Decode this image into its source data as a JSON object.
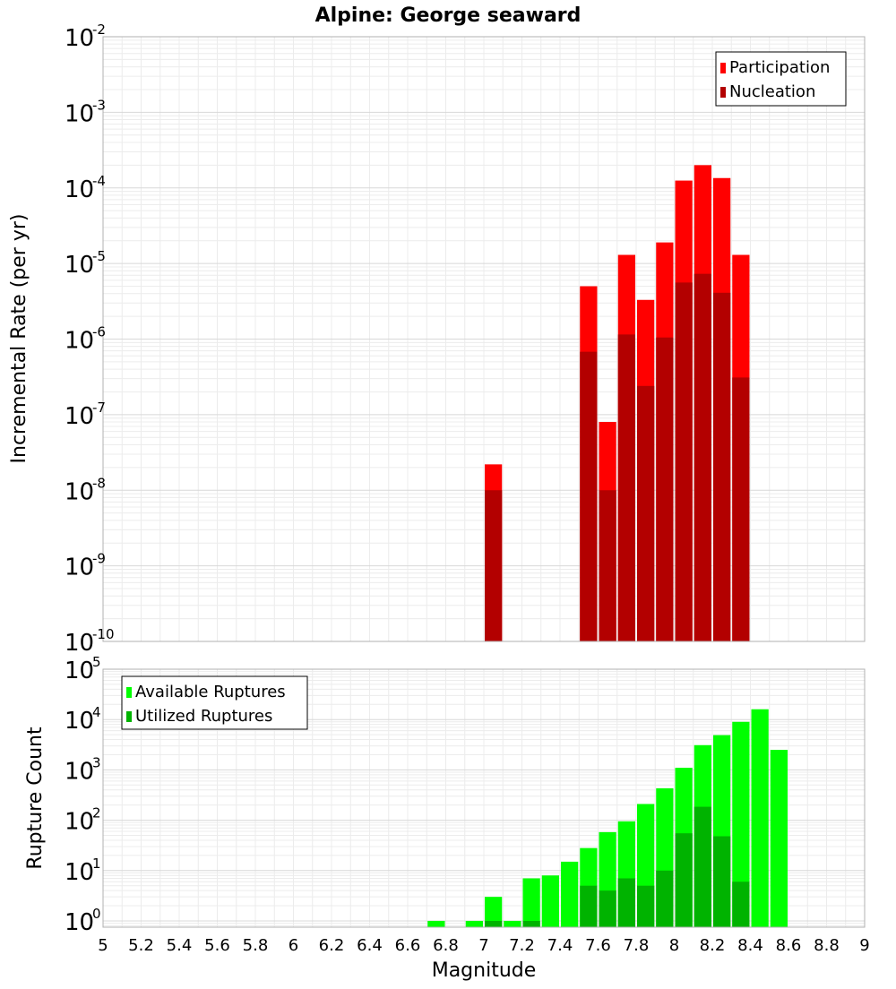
{
  "chart_data": [
    {
      "type": "bar",
      "title": "Alpine: George seaward",
      "xlabel": "",
      "ylabel": "Incremental Rate (per yr)",
      "y_scale": "log",
      "ylim": [
        1e-10,
        0.01
      ],
      "xlim": [
        5,
        9
      ],
      "y_tick_exponents": [
        "-10",
        "-9",
        "-8",
        "-7",
        "-6",
        "-5",
        "-4",
        "-3",
        "-2"
      ],
      "y_tick_base": "10",
      "grid": true,
      "legend_position": "top-right",
      "bin_width": 0.1,
      "series": [
        {
          "name": "Participation",
          "color": "#ff0000",
          "x": [
            7.05,
            7.55,
            7.65,
            7.75,
            7.85,
            7.95,
            8.05,
            8.15,
            8.25,
            8.35
          ],
          "values": [
            2.2e-08,
            5e-06,
            8e-08,
            1.3e-05,
            3.3e-06,
            1.9e-05,
            0.000125,
            0.0002,
            0.000135,
            1.3e-05
          ]
        },
        {
          "name": "Nucleation",
          "color": "#b30000",
          "x": [
            7.05,
            7.55,
            7.65,
            7.75,
            7.85,
            7.95,
            8.05,
            8.15,
            8.25,
            8.35
          ],
          "values": [
            1e-08,
            6.8e-07,
            1e-08,
            1.15e-06,
            2.4e-07,
            1.05e-06,
            5.6e-06,
            7.3e-06,
            4.1e-06,
            3.1e-07
          ]
        }
      ]
    },
    {
      "type": "bar",
      "title": "",
      "xlabel": "Magnitude",
      "ylabel": "Rupture Count",
      "y_scale": "log",
      "ylim": [
        0.75,
        100000.0
      ],
      "xlim": [
        5,
        9
      ],
      "y_tick_exponents": [
        "0",
        "1",
        "2",
        "3",
        "4",
        "5"
      ],
      "y_tick_base": "10",
      "x_ticks": [
        "5",
        "5.2",
        "5.4",
        "5.6",
        "5.8",
        "6",
        "6.2",
        "6.4",
        "6.6",
        "6.8",
        "7",
        "7.2",
        "7.4",
        "7.6",
        "7.8",
        "8",
        "8.2",
        "8.4",
        "8.6",
        "8.8",
        "9"
      ],
      "grid": true,
      "legend_position": "top-left",
      "bin_width": 0.1,
      "series": [
        {
          "name": "Available Ruptures",
          "color": "#00ff00",
          "x": [
            6.75,
            6.95,
            7.05,
            7.15,
            7.25,
            7.35,
            7.45,
            7.55,
            7.65,
            7.75,
            7.85,
            7.95,
            8.05,
            8.15,
            8.25,
            8.35,
            8.45,
            8.55
          ],
          "values": [
            1,
            1,
            3,
            1,
            7,
            8,
            15,
            28,
            58,
            95,
            210,
            430,
            1100,
            3100,
            4900,
            9000,
            16000,
            2500
          ]
        },
        {
          "name": "Utilized Ruptures",
          "color": "#00b300",
          "x": [
            7.05,
            7.25,
            7.55,
            7.65,
            7.75,
            7.85,
            7.95,
            8.05,
            8.15,
            8.25,
            8.35
          ],
          "values": [
            1,
            1,
            5,
            4,
            7,
            5,
            10,
            55,
            185,
            48,
            6
          ]
        }
      ]
    }
  ]
}
